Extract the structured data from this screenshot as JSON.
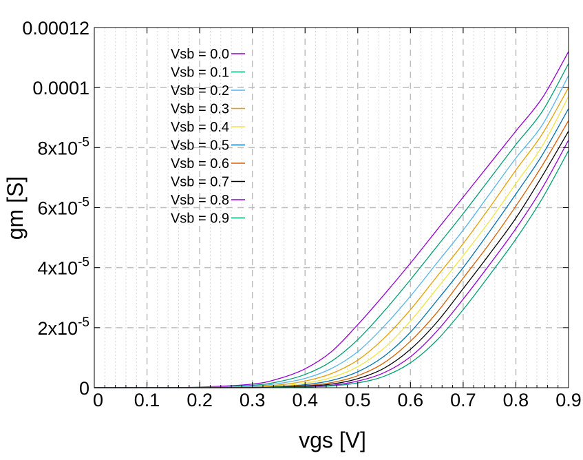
{
  "chart_data": {
    "type": "line",
    "xlabel": "vgs [V]",
    "ylabel": "gm [S]",
    "xlim": [
      0,
      0.9
    ],
    "ylim": [
      0,
      0.00012
    ],
    "grid": true,
    "legend_position": "top-left",
    "x_ticks": [
      {
        "value": 0,
        "label": "0"
      },
      {
        "value": 0.1,
        "label": "0.1"
      },
      {
        "value": 0.2,
        "label": "0.2"
      },
      {
        "value": 0.3,
        "label": "0.3"
      },
      {
        "value": 0.4,
        "label": "0.4"
      },
      {
        "value": 0.5,
        "label": "0.5"
      },
      {
        "value": 0.6,
        "label": "0.6"
      },
      {
        "value": 0.7,
        "label": "0.7"
      },
      {
        "value": 0.8,
        "label": "0.8"
      },
      {
        "value": 0.9,
        "label": "0.9"
      }
    ],
    "y_ticks": [
      {
        "value": 0,
        "mant": "0",
        "exp": ""
      },
      {
        "value": 2e-05,
        "mant": "2x10",
        "exp": "-5"
      },
      {
        "value": 4e-05,
        "mant": "4x10",
        "exp": "-5"
      },
      {
        "value": 6e-05,
        "mant": "6x10",
        "exp": "-5"
      },
      {
        "value": 8e-05,
        "mant": "8x10",
        "exp": "-5"
      },
      {
        "value": 0.0001,
        "mant": "0.0001",
        "exp": ""
      },
      {
        "value": 0.00012,
        "mant": "0.00012",
        "exp": ""
      }
    ],
    "x": [
      0,
      0.1,
      0.2,
      0.3,
      0.35,
      0.4,
      0.45,
      0.5,
      0.55,
      0.6,
      0.65,
      0.7,
      0.75,
      0.8,
      0.85,
      0.9
    ],
    "series": [
      {
        "name": "Vsb = 0.0",
        "color": "#9400D3",
        "values": [
          0,
          0,
          2e-07,
          1.2e-06,
          3e-06,
          6.3e-06,
          1.2e-05,
          2.1e-05,
          3.1e-05,
          4.15e-05,
          5.25e-05,
          6.35e-05,
          7.45e-05,
          8.55e-05,
          9.65e-05,
          0.000112
        ]
      },
      {
        "name": "Vsb = 0.1",
        "color": "#009E73",
        "values": [
          0,
          0,
          1e-07,
          8e-07,
          2e-06,
          4.4e-06,
          8.8e-06,
          1.6e-05,
          2.55e-05,
          3.6e-05,
          4.7e-05,
          5.8e-05,
          6.95e-05,
          8.1e-05,
          9.2e-05,
          0.000108
        ]
      },
      {
        "name": "Vsb = 0.2",
        "color": "#56B4E9",
        "values": [
          0,
          0,
          1e-07,
          5e-07,
          1.4e-06,
          3.1e-06,
          6.4e-06,
          1.2e-05,
          2.05e-05,
          3.05e-05,
          4.15e-05,
          5.25e-05,
          6.45e-05,
          7.65e-05,
          8.75e-05,
          0.000104
        ]
      },
      {
        "name": "Vsb = 0.3",
        "color": "#E69F00",
        "values": [
          0,
          0,
          0,
          3e-07,
          9e-07,
          2.2e-06,
          4.7e-06,
          9.2e-06,
          1.65e-05,
          2.6e-05,
          3.7e-05,
          4.8e-05,
          6e-05,
          7.25e-05,
          8.45e-05,
          0.0001
        ]
      },
      {
        "name": "Vsb = 0.4",
        "color": "#F0E442",
        "values": [
          0,
          0,
          0,
          2e-07,
          6e-07,
          1.5e-06,
          3.4e-06,
          7e-06,
          1.32e-05,
          2.22e-05,
          3.3e-05,
          4.4e-05,
          5.55e-05,
          6.8e-05,
          8.05e-05,
          9.7e-05
        ]
      },
      {
        "name": "Vsb = 0.5",
        "color": "#0072B2",
        "values": [
          0,
          0,
          0,
          1e-07,
          4e-07,
          1e-06,
          2.4e-06,
          5.3e-06,
          1.05e-05,
          1.85e-05,
          2.9e-05,
          4e-05,
          5.2e-05,
          6.45e-05,
          7.75e-05,
          9.3e-05
        ]
      },
      {
        "name": "Vsb = 0.6",
        "color": "#D55E00",
        "values": [
          0,
          0,
          0,
          1e-07,
          3e-07,
          7e-07,
          1.7e-06,
          4e-06,
          8.3e-06,
          1.55e-05,
          2.5e-05,
          3.65e-05,
          4.8e-05,
          6.05e-05,
          7.4e-05,
          8.9e-05
        ]
      },
      {
        "name": "Vsb = 0.7",
        "color": "#000000",
        "values": [
          0,
          0,
          0,
          0,
          2e-07,
          5e-07,
          1.2e-06,
          3e-06,
          6.5e-06,
          1.28e-05,
          2.18e-05,
          3.3e-05,
          4.45e-05,
          5.65e-05,
          7.05e-05,
          8.55e-05
        ]
      },
      {
        "name": "Vsb = 0.8",
        "color": "#9400D3",
        "values": [
          0,
          0,
          0,
          0,
          1e-07,
          3e-07,
          8e-07,
          2.2e-06,
          5e-06,
          1.03e-05,
          1.88e-05,
          2.95e-05,
          4.1e-05,
          5.3e-05,
          6.65e-05,
          8.25e-05
        ]
      },
      {
        "name": "Vsb = 0.9",
        "color": "#009E73",
        "values": [
          0,
          0,
          0,
          0,
          1e-07,
          2e-07,
          6e-07,
          1.6e-06,
          3.8e-06,
          8.3e-06,
          1.58e-05,
          2.6e-05,
          3.75e-05,
          4.95e-05,
          6.3e-05,
          7.9e-05
        ]
      }
    ]
  }
}
